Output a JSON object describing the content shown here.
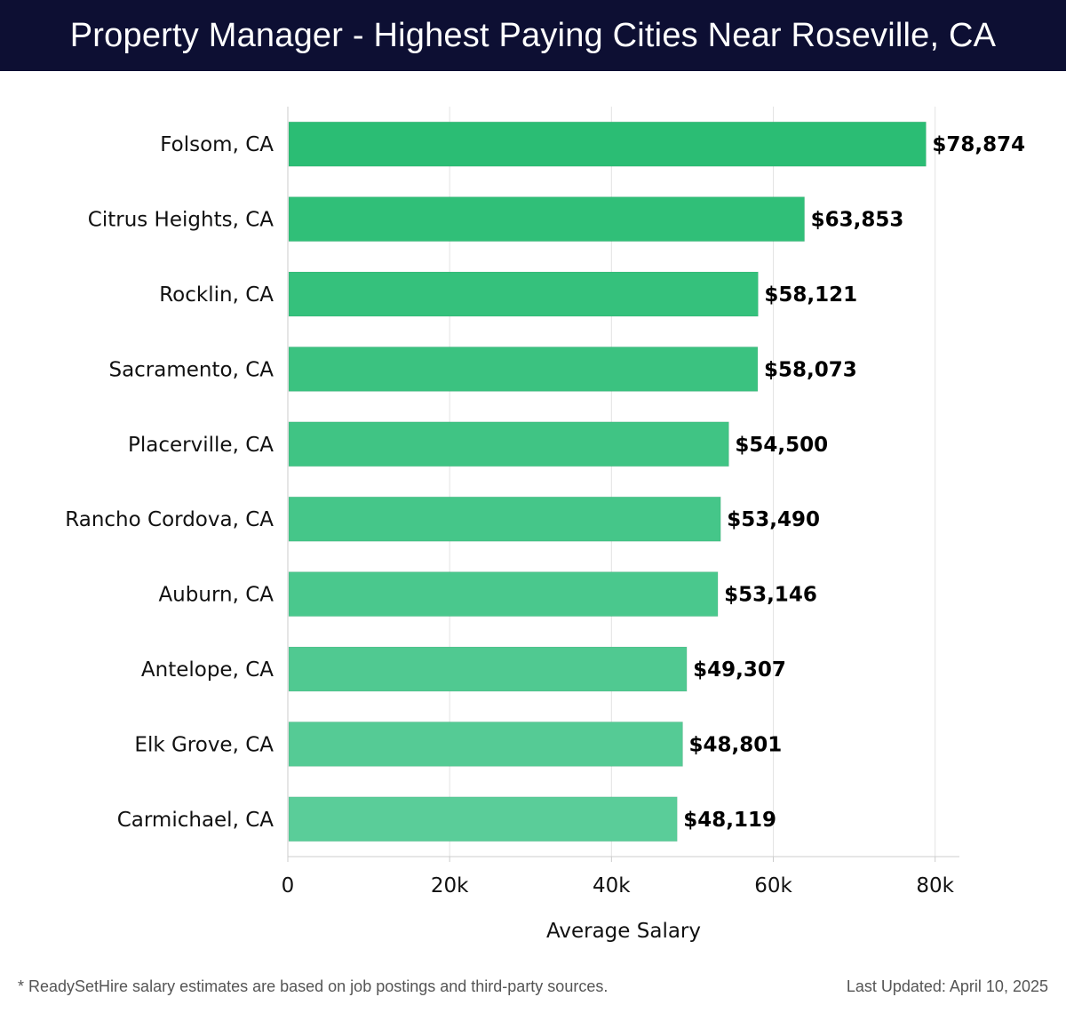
{
  "header": {
    "title": "Property Manager - Highest Paying Cities Near Roseville, CA",
    "background_color": "#0d0f33"
  },
  "chart_data": {
    "type": "bar",
    "orientation": "horizontal",
    "title": "Property Manager - Highest Paying Cities Near Roseville, CA",
    "xlabel": "Average Salary",
    "ylabel": "",
    "categories": [
      "Folsom, CA",
      "Citrus Heights, CA",
      "Rocklin, CA",
      "Sacramento, CA",
      "Placerville, CA",
      "Rancho Cordova, CA",
      "Auburn, CA",
      "Antelope, CA",
      "Elk Grove, CA",
      "Carmichael, CA"
    ],
    "values": [
      78874,
      63853,
      58121,
      58073,
      54500,
      53490,
      53146,
      49307,
      48801,
      48119
    ],
    "value_labels": [
      "$78,874",
      "$63,853",
      "$58,121",
      "$58,073",
      "$54,500",
      "$53,490",
      "$53,146",
      "$49,307",
      "$48,801",
      "$48,119"
    ],
    "xlim": [
      0,
      83000
    ],
    "x_ticks": [
      0,
      20000,
      40000,
      60000,
      80000
    ],
    "x_tick_labels": [
      "0",
      "20k",
      "40k",
      "60k",
      "80k"
    ],
    "grid": "vertical",
    "legend": "none",
    "bar_color_top": "#2bbd74",
    "bar_color_bottom": "#5acd99"
  },
  "footer": {
    "note": "* ReadySetHire salary estimates are based on job postings and third-party sources.",
    "updated": "Last Updated: April 10, 2025"
  }
}
